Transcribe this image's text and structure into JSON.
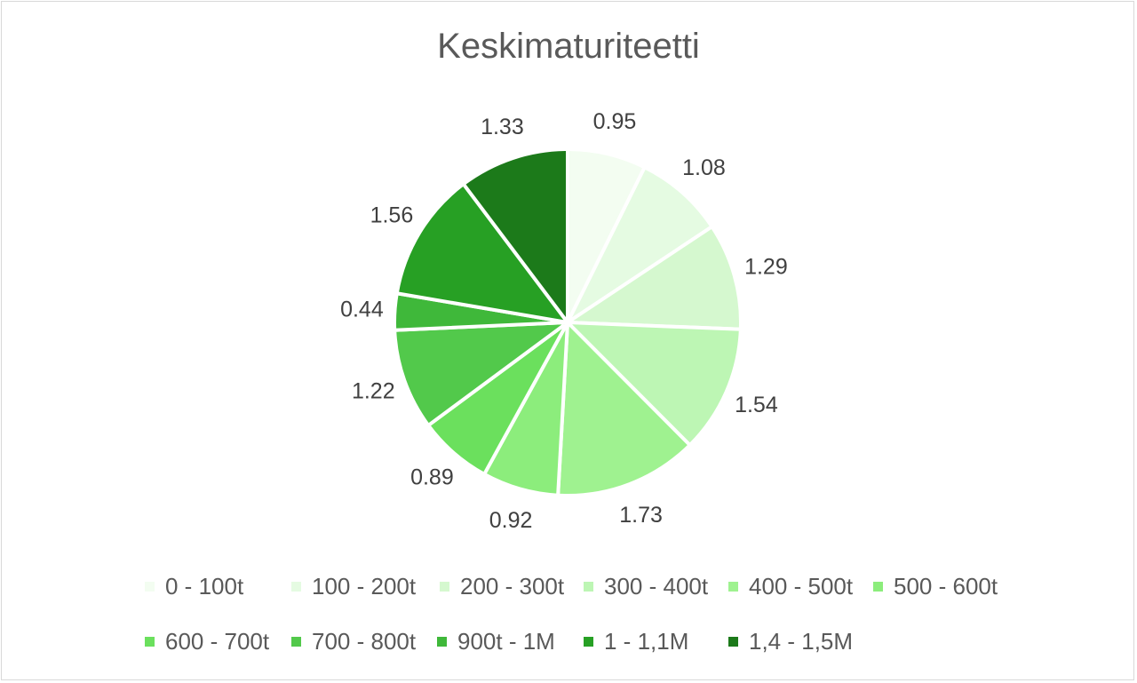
{
  "chart_data": {
    "type": "pie",
    "title": "Keskimaturiteetti",
    "legend_position": "bottom",
    "categories": [
      "0 - 100t",
      "100 - 200t",
      "200 - 300t",
      "300 - 400t",
      "400 - 500t",
      "500 - 600t",
      "600 - 700t",
      "700 - 800t",
      "900t - 1M",
      "1 - 1,1M",
      "1,4 - 1,5M"
    ],
    "values": [
      0.95,
      1.08,
      1.29,
      1.54,
      1.73,
      0.92,
      0.89,
      1.22,
      0.44,
      1.56,
      1.33
    ],
    "colors": [
      "#f3fdf1",
      "#e5fbe2",
      "#d5f8cf",
      "#bdf6b4",
      "#9ff290",
      "#8ced7c",
      "#6be05d",
      "#52c94b",
      "#3fb83a",
      "#27a024",
      "#1c7a1a"
    ]
  }
}
